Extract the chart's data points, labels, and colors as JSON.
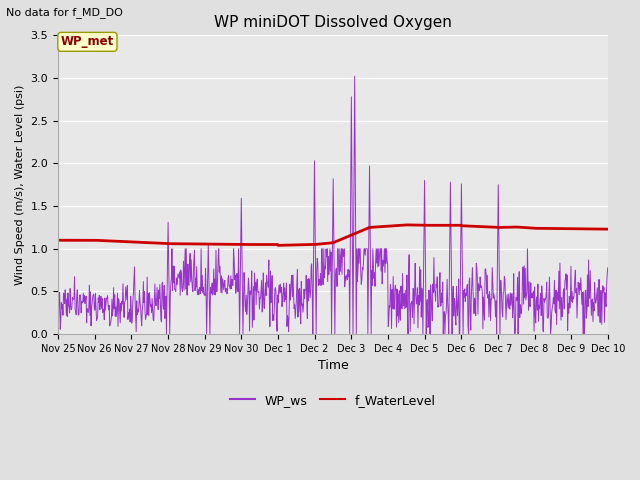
{
  "title": "WP miniDOT Dissolved Oxygen",
  "top_left_text": "No data for f_MD_DO",
  "xlabel": "Time",
  "ylabel": "Wind Speed (m/s), Water Level (psi)",
  "ylim": [
    0.0,
    3.5
  ],
  "bg_color": "#e0e0e0",
  "plot_bg_color": "#e8e8e8",
  "legend_label_box": "WP_met",
  "legend_items": [
    "WP_ws",
    "f_WaterLevel"
  ],
  "wp_ws_color": "#9933cc",
  "f_wl_color": "#cc0000",
  "x_tick_labels": [
    "Nov 25",
    "Nov 26",
    "Nov 27",
    "Nov 28",
    "Nov 29",
    "Nov 30",
    "Dec 1",
    "Dec 2",
    "Dec 3",
    "Dec 4",
    "Dec 5",
    "Dec 6",
    "Dec 7",
    "Dec 8",
    "Dec 9",
    "Dec 10"
  ],
  "yticks": [
    0.0,
    0.5,
    1.0,
    1.5,
    2.0,
    2.5,
    3.0,
    3.5
  ]
}
